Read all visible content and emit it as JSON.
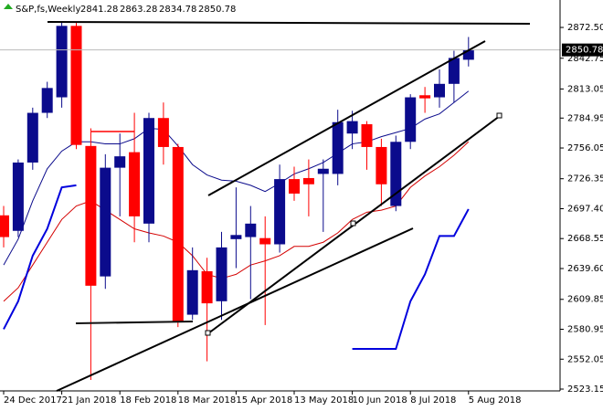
{
  "chart_data": {
    "type": "candlestick",
    "title": "S&P,fs,Weekly",
    "x": [
      "24 Dec 2017",
      null,
      null,
      null,
      "21 Jan 2018",
      null,
      null,
      null,
      "18 Feb 2018",
      null,
      null,
      null,
      "18 Mar 2018",
      null,
      null,
      null,
      "15 Apr 2018",
      null,
      null,
      null,
      "13 May 2018",
      null,
      null,
      null,
      "10 Jun 2018",
      null,
      null,
      null,
      "8 Jul 2018",
      null,
      null,
      null,
      "5 Aug 2018"
    ],
    "open": [
      2691,
      2676,
      2742,
      2790,
      2805,
      2874,
      2758,
      2632,
      2737,
      2752,
      2683,
      2785,
      2757,
      2595,
      2637,
      2608,
      2668,
      2670,
      2669,
      2663,
      2726,
      2727,
      2731,
      2731,
      2770,
      2779,
      2757,
      2700,
      2762,
      2807,
      2805,
      2818,
      2841.28
    ],
    "high": [
      2700,
      2745,
      2795,
      2820,
      2878,
      2878,
      2775,
      2750,
      2770,
      2790,
      2790,
      2800,
      2760,
      2660,
      2650,
      2675,
      2718,
      2700,
      2690,
      2740,
      2738,
      2745,
      2745,
      2793,
      2792,
      2782,
      2765,
      2768,
      2808,
      2815,
      2832,
      2850,
      2863.28
    ],
    "low": [
      2660,
      2670,
      2735,
      2785,
      2795,
      2755,
      2532,
      2620,
      2690,
      2665,
      2665,
      2740,
      2583,
      2590,
      2550,
      2590,
      2640,
      2610,
      2585,
      2655,
      2705,
      2690,
      2675,
      2720,
      2755,
      2735,
      2700,
      2695,
      2755,
      2790,
      2795,
      2800,
      2834.78
    ],
    "close": [
      2670,
      2742,
      2790,
      2814,
      2874,
      2759,
      2623,
      2737,
      2748,
      2690,
      2785,
      2757,
      2588,
      2638,
      2606,
      2660,
      2672,
      2683,
      2663,
      2726,
      2712,
      2721,
      2736,
      2781,
      2782,
      2757,
      2721,
      2762,
      2805,
      2804,
      2818,
      2843,
      2850.78
    ],
    "up_color": "#0b0b8c",
    "down_color": "#ff0000",
    "overlays": [
      {
        "color": "#0b0b8c",
        "width": 1,
        "values": [
          2643,
          2668,
          2705,
          2736,
          2753,
          2762,
          2762,
          2760,
          2760,
          2765,
          2775,
          2774,
          2758,
          2740,
          2730,
          2725,
          2724,
          2720,
          2714,
          2722,
          2731,
          2736,
          2742,
          2751,
          2760,
          2762,
          2767,
          2771,
          2775,
          2784,
          2789,
          2800,
          2811
        ]
      },
      {
        "color": "#d40000",
        "width": 1,
        "values": [
          2608,
          2621,
          2643,
          2665,
          2687,
          2700,
          2705,
          2696,
          2687,
          2678,
          2674,
          2671,
          2665,
          2652,
          2634,
          2630,
          2634,
          2643,
          2647,
          2652,
          2661,
          2661,
          2665,
          2674,
          2687,
          2694,
          2696,
          2700,
          2718,
          2729,
          2738,
          2749,
          2762
        ]
      },
      {
        "color": "#0000dd",
        "width": 2,
        "values": [
          2581,
          2608,
          2652,
          2678,
          2718,
          2720,
          null,
          null,
          null,
          null,
          null,
          null,
          null,
          null,
          null,
          null,
          null,
          null,
          null,
          null,
          null,
          null,
          null,
          null,
          2562,
          2562,
          2562,
          2562,
          2608,
          2634,
          2671,
          2671,
          2697
        ]
      }
    ],
    "ylim": [
      2521.4,
      2899.0
    ],
    "yticks": [
      {
        "value": 2872.5,
        "label": "2872.50"
      },
      2842.75,
      2813.05,
      2784.95,
      2756.05,
      2726.35,
      {
        "value": 2697.4,
        "label": "2697.40"
      },
      2668.55,
      {
        "value": 2639.6,
        "label": "2639.60"
      },
      2609.85,
      2580.95,
      2552.05,
      2523.15
    ],
    "grid": false
  }
}
